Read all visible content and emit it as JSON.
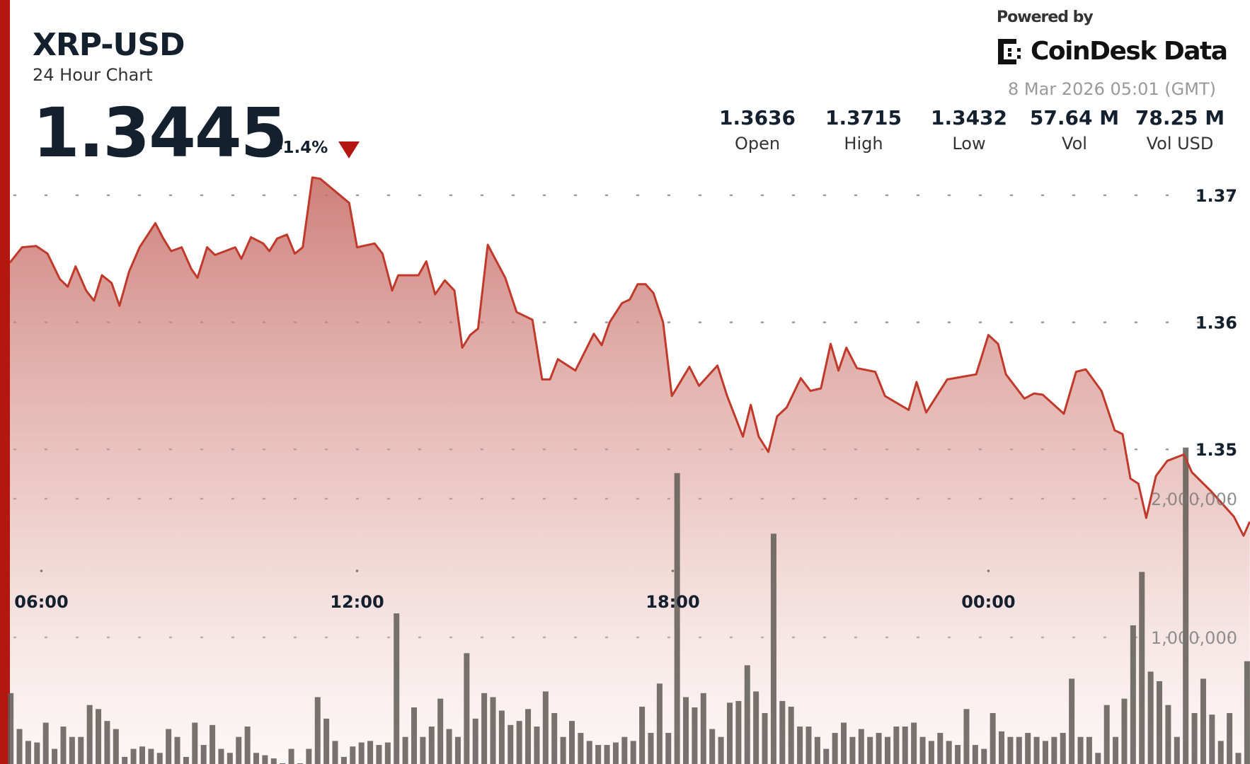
{
  "header": {
    "ticker": "XRP-USD",
    "subtitle": "24 Hour Chart",
    "price": "1.3445",
    "change": "-1.4%",
    "direction_icon": "triangle-down-icon"
  },
  "branding": {
    "powered_by": "Powered by",
    "brand": "CoinDesk Data",
    "timestamp": "8 Mar 2026 05:01 (GMT)"
  },
  "stats": [
    {
      "value": "1.3636",
      "label": "Open"
    },
    {
      "value": "1.3715",
      "label": "High"
    },
    {
      "value": "1.3432",
      "label": "Low"
    },
    {
      "value": "57.64 M",
      "label": "Vol"
    },
    {
      "value": "78.25 M",
      "label": "Vol USD"
    }
  ],
  "colors": {
    "accent": "#b3170f",
    "line": "#c0392b",
    "fill_top": "#c56a63",
    "volume_bar": "#5f5a55",
    "text": "#14202e"
  },
  "chart_data": {
    "type": "area",
    "grid": true,
    "price_axis": {
      "ticks": [
        "1.37",
        "1.36",
        "1.35"
      ],
      "tick_values": [
        1.37,
        1.36,
        1.35
      ]
    },
    "volume_axis": {
      "ticks": [
        "2,000,000",
        "1,000,000"
      ],
      "tick_values": [
        2000000,
        1000000
      ]
    },
    "time_axis": {
      "ticks": [
        "06:00",
        "12:00",
        "18:00",
        "00:00"
      ],
      "tick_times": [
        "2026-03-07T06:00",
        "2026-03-07T12:00",
        "2026-03-07T18:00",
        "2026-03-08T00:00"
      ]
    },
    "price_series": [
      [
        "2026-03-07T05:24",
        1.3647
      ],
      [
        "2026-03-07T05:38",
        1.3659
      ],
      [
        "2026-03-07T05:54",
        1.366
      ],
      [
        "2026-03-07T06:07",
        1.3654
      ],
      [
        "2026-03-07T06:21",
        1.3634
      ],
      [
        "2026-03-07T06:30",
        1.3628
      ],
      [
        "2026-03-07T06:39",
        1.3644
      ],
      [
        "2026-03-07T06:51",
        1.3625
      ],
      [
        "2026-03-07T07:00",
        1.3617
      ],
      [
        "2026-03-07T07:09",
        1.3637
      ],
      [
        "2026-03-07T07:20",
        1.3631
      ],
      [
        "2026-03-07T07:29",
        1.3613
      ],
      [
        "2026-03-07T07:40",
        1.364
      ],
      [
        "2026-03-07T07:52",
        1.3659
      ],
      [
        "2026-03-07T08:10",
        1.3678
      ],
      [
        "2026-03-07T08:19",
        1.3666
      ],
      [
        "2026-03-07T08:28",
        1.3656
      ],
      [
        "2026-03-07T08:40",
        1.3659
      ],
      [
        "2026-03-07T08:51",
        1.3642
      ],
      [
        "2026-03-07T08:58",
        1.3635
      ],
      [
        "2026-03-07T09:09",
        1.3659
      ],
      [
        "2026-03-07T09:18",
        1.3653
      ],
      [
        "2026-03-07T09:41",
        1.3659
      ],
      [
        "2026-03-07T09:48",
        1.365
      ],
      [
        "2026-03-07T09:59",
        1.3667
      ],
      [
        "2026-03-07T10:13",
        1.3662
      ],
      [
        "2026-03-07T10:20",
        1.3656
      ],
      [
        "2026-03-07T10:29",
        1.3666
      ],
      [
        "2026-03-07T10:40",
        1.3669
      ],
      [
        "2026-03-07T10:49",
        1.3654
      ],
      [
        "2026-03-07T10:58",
        1.3659
      ],
      [
        "2026-03-07T11:09",
        1.3714
      ],
      [
        "2026-03-07T11:18",
        1.3713
      ],
      [
        "2026-03-07T11:30",
        1.3706
      ],
      [
        "2026-03-07T11:51",
        1.3694
      ],
      [
        "2026-03-07T12:00",
        1.3659
      ],
      [
        "2026-03-07T12:20",
        1.3662
      ],
      [
        "2026-03-07T12:29",
        1.3654
      ],
      [
        "2026-03-07T12:40",
        1.3625
      ],
      [
        "2026-03-07T12:47",
        1.3637
      ],
      [
        "2026-03-07T13:10",
        1.3637
      ],
      [
        "2026-03-07T13:19",
        1.3648
      ],
      [
        "2026-03-07T13:29",
        1.3622
      ],
      [
        "2026-03-07T13:40",
        1.3633
      ],
      [
        "2026-03-07T13:51",
        1.3625
      ],
      [
        "2026-03-07T14:00",
        1.358
      ],
      [
        "2026-03-07T14:09",
        1.359
      ],
      [
        "2026-03-07T14:18",
        1.3595
      ],
      [
        "2026-03-07T14:29",
        1.3661
      ],
      [
        "2026-03-07T14:49",
        1.3635
      ],
      [
        "2026-03-07T15:02",
        1.3608
      ],
      [
        "2026-03-07T15:20",
        1.3602
      ],
      [
        "2026-03-07T15:31",
        1.3555
      ],
      [
        "2026-03-07T15:40",
        1.3555
      ],
      [
        "2026-03-07T15:49",
        1.3571
      ],
      [
        "2026-03-07T16:09",
        1.3562
      ],
      [
        "2026-03-07T16:30",
        1.3591
      ],
      [
        "2026-03-07T16:39",
        1.3582
      ],
      [
        "2026-03-07T16:48",
        1.36
      ],
      [
        "2026-03-07T17:02",
        1.3615
      ],
      [
        "2026-03-07T17:11",
        1.3618
      ],
      [
        "2026-03-07T17:20",
        1.363
      ],
      [
        "2026-03-07T17:29",
        1.363
      ],
      [
        "2026-03-07T17:38",
        1.3623
      ],
      [
        "2026-03-07T17:49",
        1.36
      ],
      [
        "2026-03-07T17:59",
        1.3542
      ],
      [
        "2026-03-07T18:19",
        1.3565
      ],
      [
        "2026-03-07T18:30",
        1.355
      ],
      [
        "2026-03-07T18:51",
        1.3566
      ],
      [
        "2026-03-07T19:02",
        1.3542
      ],
      [
        "2026-03-07T19:20",
        1.351
      ],
      [
        "2026-03-07T19:29",
        1.3535
      ],
      [
        "2026-03-07T19:38",
        1.351
      ],
      [
        "2026-03-07T19:49",
        1.3498
      ],
      [
        "2026-03-07T19:59",
        1.3526
      ],
      [
        "2026-03-07T20:10",
        1.3533
      ],
      [
        "2026-03-07T20:26",
        1.3556
      ],
      [
        "2026-03-07T20:37",
        1.3546
      ],
      [
        "2026-03-07T20:49",
        1.3548
      ],
      [
        "2026-03-07T21:00",
        1.3583
      ],
      [
        "2026-03-07T21:09",
        1.3562
      ],
      [
        "2026-03-07T21:18",
        1.358
      ],
      [
        "2026-03-07T21:30",
        1.3564
      ],
      [
        "2026-03-07T21:51",
        1.3561
      ],
      [
        "2026-03-07T22:02",
        1.3542
      ],
      [
        "2026-03-07T22:29",
        1.3531
      ],
      [
        "2026-03-07T22:38",
        1.3553
      ],
      [
        "2026-03-07T22:49",
        1.3529
      ],
      [
        "2026-03-07T23:13",
        1.3555
      ],
      [
        "2026-03-07T23:46",
        1.3559
      ],
      [
        "2026-03-08T00:00",
        1.359
      ],
      [
        "2026-03-08T00:11",
        1.3583
      ],
      [
        "2026-03-08T00:20",
        1.3559
      ],
      [
        "2026-03-08T00:41",
        1.354
      ],
      [
        "2026-03-08T00:52",
        1.3544
      ],
      [
        "2026-03-08T01:02",
        1.3543
      ],
      [
        "2026-03-08T01:26",
        1.3528
      ],
      [
        "2026-03-08T01:40",
        1.3561
      ],
      [
        "2026-03-08T01:51",
        1.3563
      ],
      [
        "2026-03-08T02:09",
        1.3546
      ],
      [
        "2026-03-08T02:24",
        1.3515
      ],
      [
        "2026-03-08T02:33",
        1.3512
      ],
      [
        "2026-03-08T02:42",
        1.3477
      ],
      [
        "2026-03-08T02:51",
        1.3473
      ],
      [
        "2026-03-08T03:00",
        1.3446
      ],
      [
        "2026-03-08T03:11",
        1.3479
      ],
      [
        "2026-03-08T03:24",
        1.3491
      ],
      [
        "2026-03-08T03:43",
        1.3496
      ],
      [
        "2026-03-08T03:52",
        1.3482
      ],
      [
        "2026-03-08T04:14",
        1.3467
      ],
      [
        "2026-03-08T04:40",
        1.3447
      ],
      [
        "2026-03-08T04:51",
        1.3432
      ],
      [
        "2026-03-08T04:58",
        1.3443
      ]
    ],
    "volume_start": "2026-03-07T05:25",
    "volume_interval_minutes": 10,
    "volume_values": [
      598000,
      339000,
      253000,
      242000,
      385000,
      196000,
      357000,
      282000,
      282000,
      512000,
      483000,
      397000,
      339000,
      138000,
      196000,
      213000,
      196000,
      167000,
      339000,
      282000,
      138000,
      385000,
      224000,
      368000,
      196000,
      167000,
      282000,
      357000,
      167000,
      150000,
      127000,
      92000,
      196000,
      92000,
      196000,
      569000,
      414000,
      253000,
      138000,
      213000,
      242000,
      253000,
      224000,
      242000,
      1173000,
      282000,
      495000,
      282000,
      357000,
      558000,
      339000,
      282000,
      886000,
      414000,
      598000,
      569000,
      472000,
      368000,
      397000,
      483000,
      357000,
      610000,
      454000,
      282000,
      397000,
      311000,
      253000,
      224000,
      224000,
      242000,
      282000,
      253000,
      500000,
      311000,
      667000,
      311000,
      2185000,
      569000,
      495000,
      598000,
      339000,
      282000,
      529000,
      541000,
      799000,
      610000,
      454000,
      1748000,
      541000,
      500000,
      357000,
      357000,
      282000,
      196000,
      311000,
      385000,
      282000,
      339000,
      282000,
      311000,
      282000,
      357000,
      357000,
      385000,
      282000,
      253000,
      311000,
      253000,
      224000,
      483000,
      224000,
      196000,
      454000,
      322000,
      282000,
      282000,
      311000,
      282000,
      253000,
      282000,
      311000,
      702000,
      282000,
      282000,
      167000,
      512000,
      282000,
      558000,
      1087000,
      1472000,
      753000,
      684000,
      512000,
      282000,
      2369000,
      454000,
      702000,
      443000,
      253000,
      454000,
      167000,
      828000
    ]
  }
}
